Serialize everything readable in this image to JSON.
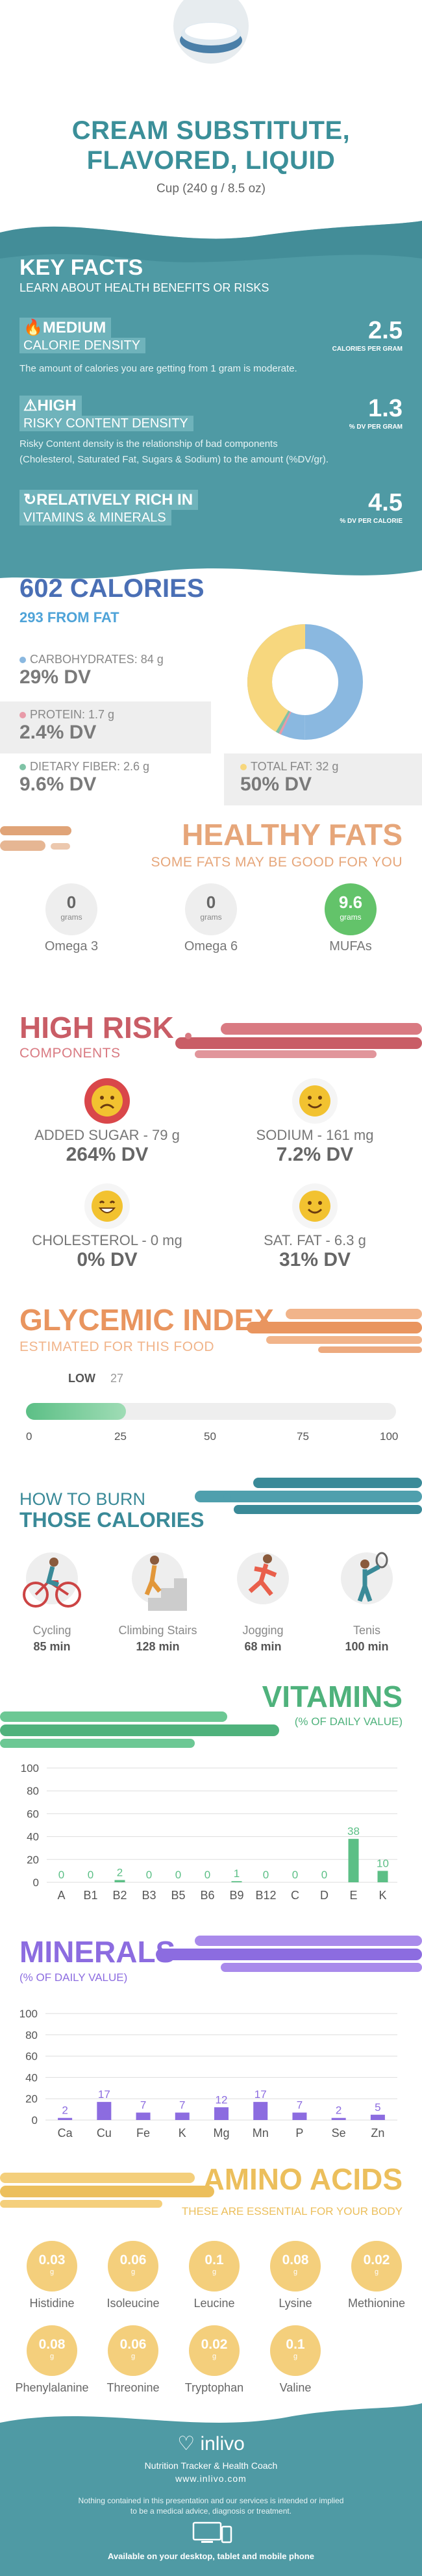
{
  "header": {
    "title_line1": "CREAM SUBSTITUTE,",
    "title_line2": "FLAVORED, LIQUID",
    "serving": "Cup (240 g / 8.5 oz)"
  },
  "key_facts": {
    "title": "KEY FACTS",
    "subtitle": "LEARN ABOUT HEALTH BENEFITS OR RISKS",
    "items": [
      {
        "tag": "MEDIUM",
        "subtag": "CALORIE DENSITY",
        "value": "2.5",
        "unit": "CALORIES PER GRAM",
        "desc": "The amount of calories you are getting from 1 gram is moderate.",
        "icon": "flame-icon"
      },
      {
        "tag": "HIGH",
        "subtag": "RISKY CONTENT DENSITY",
        "value": "1.3",
        "unit": "% DV PER GRAM",
        "desc_line1": "Risky Content density is the relationship of bad components",
        "desc_line2": "(Cholesterol, Saturated Fat, Sugars & Sodium) to the amount (%DV/gr).",
        "icon": "warning-icon"
      },
      {
        "tag": "RELATIVELY RICH  IN",
        "subtag": "VITAMINS & MINERALS",
        "value": "4.5",
        "unit": "% DV PER CALORIE",
        "icon": "refresh-icon"
      }
    ]
  },
  "calories": {
    "title": "602 CALORIES",
    "from_fat": "293 FROM FAT",
    "carbs_label": "CARBOHYDRATES: 84 g",
    "carbs_dv": "29% DV",
    "protein_label": "PROTEIN: 1.7 g",
    "protein_dv": "2.4% DV",
    "fiber_label": "DIETARY FIBER: 2.6 g",
    "fiber_dv": "9.6% DV",
    "fat_label": "TOTAL FAT: 32 g",
    "fat_dv": "50% DV",
    "colors": {
      "carbs": "#8ab8e0",
      "protein": "#e89aa8",
      "fiber": "#7fc3a6",
      "fat": "#f7d77e"
    }
  },
  "healthy_fats": {
    "title": "HEALTHY FATS",
    "subtitle": "SOME FATS MAY BE GOOD FOR YOU",
    "items": [
      {
        "value": "0",
        "unit": "grams",
        "name": "Omega 3"
      },
      {
        "value": "0",
        "unit": "grams",
        "name": "Omega 6"
      },
      {
        "value": "9.6",
        "unit": "grams",
        "name": "MUFAs"
      }
    ]
  },
  "high_risk": {
    "title": "HIGH RISK",
    "subtitle": "COMPONENTS",
    "items": [
      {
        "label": "ADDED SUGAR - 79 g",
        "dv": "264% DV",
        "face": "sad-face-icon"
      },
      {
        "label": "SODIUM - 161 mg",
        "dv": "7.2% DV",
        "face": "smile-face-icon"
      },
      {
        "label": "CHOLESTEROL - 0 mg",
        "dv": "0% DV",
        "face": "grin-face-icon"
      },
      {
        "label": "SAT. FAT - 6.3 g",
        "dv": "31% DV",
        "face": "smile-face-icon"
      }
    ]
  },
  "glycemic": {
    "title": "GLYCEMIC INDEX",
    "subtitle": "ESTIMATED FOR THIS FOOD",
    "level": "LOW",
    "value": 27,
    "value_label": "27",
    "ticks": [
      "0",
      "25",
      "50",
      "75",
      "100"
    ]
  },
  "burn": {
    "title_line1": "HOW TO BURN",
    "title_line2": "THOSE CALORIES",
    "items": [
      {
        "name": "Cycling",
        "time": "85 min",
        "icon": "cycling-icon"
      },
      {
        "name": "Climbing Stairs",
        "time": "128 min",
        "icon": "stairs-icon"
      },
      {
        "name": "Jogging",
        "time": "68 min",
        "icon": "jogging-icon"
      },
      {
        "name": "Tenis",
        "time": "100 min",
        "icon": "tennis-icon"
      }
    ]
  },
  "vitamins": {
    "title": "VITAMINS",
    "subtitle": "(% OF DAILY VALUE)"
  },
  "minerals": {
    "title": "MINERALS",
    "subtitle": "(% OF DAILY VALUE)"
  },
  "chart_data": [
    {
      "type": "bar",
      "categories": [
        "A",
        "B1",
        "B2",
        "B3",
        "B5",
        "B6",
        "B9",
        "B12",
        "C",
        "D",
        "E",
        "K"
      ],
      "values": [
        0,
        0,
        2,
        0,
        0,
        0,
        1,
        0,
        0,
        0,
        38,
        10
      ],
      "value_labels": [
        "0",
        "0",
        "2",
        "0",
        "0",
        "0",
        "1",
        "0",
        "0",
        "0",
        "38",
        "10"
      ],
      "yticks": [
        "0",
        "20",
        "40",
        "60",
        "80",
        "100"
      ],
      "ylim": [
        0,
        100
      ],
      "color": "#5cbf86"
    },
    {
      "type": "bar",
      "categories": [
        "Ca",
        "Cu",
        "Fe",
        "K",
        "Mg",
        "Mn",
        "P",
        "Se",
        "Zn"
      ],
      "values": [
        2,
        17,
        7,
        7,
        12,
        17,
        7,
        2,
        5
      ],
      "value_labels": [
        "2",
        "17",
        "7",
        "7",
        "12",
        "17",
        "7",
        "2",
        "5"
      ],
      "yticks": [
        "0",
        "20",
        "40",
        "60",
        "80",
        "100"
      ],
      "ylim": [
        0,
        100
      ],
      "color": "#8c6ce0"
    }
  ],
  "amino": {
    "title": "AMINO ACIDS",
    "subtitle": "THESE ARE ESSENTIAL FOR YOUR BODY",
    "unit": "g",
    "items": [
      {
        "value": "0.03",
        "name": "Histidine"
      },
      {
        "value": "0.06",
        "name": "Isoleucine"
      },
      {
        "value": "0.1",
        "name": "Leucine"
      },
      {
        "value": "0.08",
        "name": "Lysine"
      },
      {
        "value": "0.02",
        "name": "Methionine"
      },
      {
        "value": "0.08",
        "name": "Phenylalanine"
      },
      {
        "value": "0.06",
        "name": "Threonine"
      },
      {
        "value": "0.02",
        "name": "Tryptophan"
      },
      {
        "value": "0.1",
        "name": "Valine"
      }
    ]
  },
  "footer": {
    "brand": "inlivo",
    "tagline": "Nutrition Tracker & Health Coach",
    "url": "www.inlivo.com",
    "disclaimer1": "Nothing contained in this presentation and our services is intended or implied",
    "disclaimer2": "to be a medical advice, diagnosis or treatment.",
    "available": "Available on your desktop, tablet and mobile phone"
  }
}
